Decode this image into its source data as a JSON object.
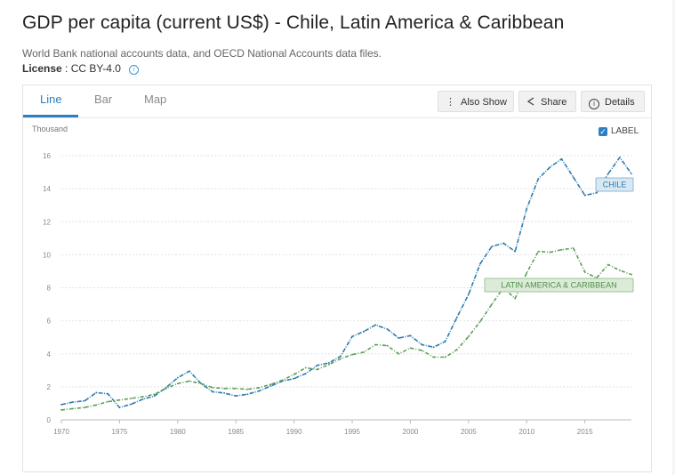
{
  "header": {
    "title": "GDP per capita (current US$) - Chile, Latin America & Caribbean",
    "source": "World Bank national accounts data, and OECD National Accounts data files.",
    "license_label": "License",
    "license_value": ": CC BY-4.0"
  },
  "tabs": [
    {
      "label": "Line",
      "active": true
    },
    {
      "label": "Bar",
      "active": false
    },
    {
      "label": "Map",
      "active": false
    }
  ],
  "buttons": {
    "also_show": "Also Show",
    "share": "Share",
    "details": "Details"
  },
  "label_toggle": {
    "label": "LABEL",
    "checked": true
  },
  "colors": {
    "chile": "#2e7bb0",
    "latam": "#5a9e56",
    "accent": "#2d7fc1"
  },
  "chart_data": {
    "type": "line",
    "title": "GDP per capita (current US$) - Chile, Latin America & Caribbean",
    "ylabel_units": "Thousand",
    "xlabel": "",
    "xlim": [
      1970,
      2019
    ],
    "ylim": [
      0,
      16
    ],
    "xticks": [
      1970,
      1975,
      1980,
      1985,
      1990,
      1995,
      2000,
      2005,
      2010,
      2015
    ],
    "yticks": [
      0,
      2,
      4,
      6,
      8,
      10,
      12,
      14,
      16
    ],
    "grid": true,
    "x": [
      1970,
      1971,
      1972,
      1973,
      1974,
      1975,
      1976,
      1977,
      1978,
      1979,
      1980,
      1981,
      1982,
      1983,
      1984,
      1985,
      1986,
      1987,
      1988,
      1989,
      1990,
      1991,
      1992,
      1993,
      1994,
      1995,
      1996,
      1997,
      1998,
      1999,
      2000,
      2001,
      2002,
      2003,
      2004,
      2005,
      2006,
      2007,
      2008,
      2009,
      2010,
      2011,
      2012,
      2013,
      2014,
      2015,
      2016,
      2017,
      2018,
      2019
    ],
    "series": [
      {
        "name": "Chile",
        "label": "CHILE",
        "color": "#2e7bb0",
        "values": [
          0.92,
          1.08,
          1.15,
          1.65,
          1.58,
          0.75,
          0.95,
          1.25,
          1.45,
          1.95,
          2.55,
          2.95,
          2.2,
          1.7,
          1.62,
          1.45,
          1.55,
          1.75,
          2.05,
          2.35,
          2.5,
          2.8,
          3.3,
          3.45,
          3.85,
          5.05,
          5.35,
          5.75,
          5.5,
          4.95,
          5.1,
          4.55,
          4.4,
          4.75,
          6.2,
          7.6,
          9.45,
          10.5,
          10.7,
          10.2,
          12.8,
          14.6,
          15.3,
          15.8,
          14.7,
          13.6,
          13.75,
          14.9,
          15.9,
          14.9
        ]
      },
      {
        "name": "Latin America & Caribbean",
        "label": "LATIN AMERICA & CARIBBEAN",
        "color": "#5a9e56",
        "values": [
          0.6,
          0.68,
          0.75,
          0.9,
          1.1,
          1.2,
          1.3,
          1.4,
          1.55,
          1.9,
          2.2,
          2.35,
          2.2,
          1.95,
          1.9,
          1.9,
          1.85,
          1.95,
          2.15,
          2.4,
          2.75,
          3.15,
          3.05,
          3.35,
          3.7,
          3.95,
          4.1,
          4.55,
          4.5,
          4.0,
          4.35,
          4.2,
          3.8,
          3.8,
          4.25,
          5.05,
          5.95,
          7.0,
          8.0,
          7.35,
          8.9,
          10.2,
          10.15,
          10.3,
          10.4,
          8.95,
          8.6,
          9.4,
          9.05,
          8.8
        ]
      }
    ]
  }
}
